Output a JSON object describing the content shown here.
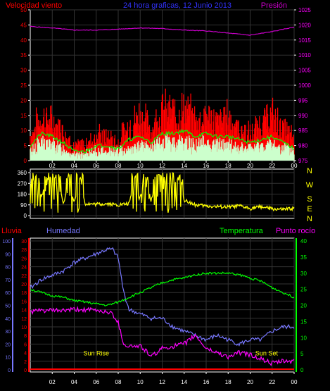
{
  "header": {
    "left_label": "Velocidad viento",
    "center_label": "24 hora graficas, 12 Junio 2013",
    "right_label": "Presión"
  },
  "colors": {
    "wind_gust": "#ff0000",
    "wind_avg_line": "#00ff00",
    "wind_speed": "#ccffcc",
    "pressure": "#cc00cc",
    "direction": "#ffff00",
    "rain": "#ff0000",
    "humidity": "#7777ff",
    "temperature": "#00ff00",
    "dew_point": "#ff00ff",
    "frame": "#ffffff",
    "left_axis": "#ff0000",
    "right_axis": "#ff00ff",
    "sun_labels": "#ffff00"
  },
  "bottom_panel": {
    "labels": {
      "rain": "Lluvia",
      "humidity": "Humedad",
      "temperature": "Temperatura",
      "dew_point": "Punto rocío"
    },
    "annotations": {
      "sunrise": "Sun Rise",
      "sunset": "Sun Set"
    }
  },
  "chart_data": [
    {
      "type": "line",
      "x_ticks": [
        "02",
        "04",
        "06",
        "08",
        "10",
        "12",
        "14",
        "16",
        "18",
        "20",
        "22",
        "00"
      ],
      "x_ticks_positions": [
        2,
        4,
        6,
        8,
        10,
        12,
        14,
        16,
        18,
        20,
        22,
        24
      ],
      "xlim": [
        0,
        24
      ],
      "left_axis": {
        "ticks": [
          0,
          5,
          10,
          15,
          20,
          25,
          30,
          35,
          40,
          45,
          50
        ],
        "ylim": [
          0,
          50
        ]
      },
      "right_axis": {
        "ticks": [
          975,
          980,
          985,
          990,
          995,
          1000,
          1005,
          1010,
          1015,
          1020,
          1025
        ],
        "ylim": [
          975,
          1025
        ]
      },
      "series": [
        {
          "key": "pressure",
          "axis": "right",
          "x": [
            0,
            2,
            4,
            6,
            8,
            10,
            12,
            14,
            16,
            18,
            20,
            22,
            24
          ],
          "values": [
            1019.5,
            1019.0,
            1018.3,
            1018.3,
            1018.6,
            1019.0,
            1018.8,
            1018.3,
            1018.0,
            1017.3,
            1016.6,
            1017.8,
            1019.3
          ]
        },
        {
          "key": "wind_gust",
          "axis": "left",
          "x": [
            0,
            1,
            2,
            3,
            4,
            5,
            6,
            7,
            8,
            9,
            10,
            11,
            12,
            13,
            14,
            15,
            16,
            17,
            18,
            19,
            20,
            21,
            22,
            23,
            24
          ],
          "values": [
            8,
            14,
            12,
            10,
            4,
            5,
            8,
            7,
            6,
            11,
            15,
            10,
            16,
            15,
            16,
            13,
            14,
            12,
            14,
            10,
            8,
            12,
            14,
            10,
            7
          ]
        },
        {
          "key": "wind_avg_line",
          "axis": "left",
          "x": [
            0,
            1,
            2,
            3,
            4,
            5,
            6,
            7,
            8,
            9,
            10,
            11,
            12,
            13,
            14,
            15,
            16,
            17,
            18,
            19,
            20,
            21,
            22,
            23,
            24
          ],
          "values": [
            5,
            9,
            8,
            6,
            3,
            3,
            5,
            5,
            4,
            7,
            8,
            6,
            9,
            9,
            10,
            8,
            9,
            8,
            8,
            7,
            6,
            7,
            8,
            6,
            4
          ]
        },
        {
          "key": "wind_speed",
          "axis": "left",
          "x": [
            0,
            1,
            2,
            3,
            4,
            5,
            6,
            7,
            8,
            9,
            10,
            11,
            12,
            13,
            14,
            15,
            16,
            17,
            18,
            19,
            20,
            21,
            22,
            23,
            24
          ],
          "values": [
            3,
            6,
            5,
            4,
            2,
            2,
            3,
            3,
            3,
            4,
            5,
            4,
            6,
            6,
            6,
            5,
            6,
            5,
            5,
            4,
            4,
            5,
            5,
            4,
            3
          ]
        }
      ]
    },
    {
      "type": "line",
      "x_ticks_positions": [
        2,
        4,
        6,
        8,
        10,
        12,
        14,
        16,
        18,
        20,
        22,
        24
      ],
      "xlim": [
        0,
        24
      ],
      "left_axis": {
        "ticks": [
          0,
          90,
          180,
          270,
          360
        ],
        "ylim": [
          0,
          360
        ]
      },
      "right_axis": {
        "ticks": [
          "N",
          "W",
          "S",
          "E",
          "N"
        ]
      },
      "series": [
        {
          "key": "direction",
          "x": [
            0,
            0.5,
            1,
            1.5,
            2,
            2.5,
            3,
            3.5,
            4,
            4.5,
            5,
            6,
            7,
            8,
            9,
            9.5,
            10,
            10.5,
            11,
            11.5,
            12,
            12.5,
            13,
            13.5,
            14,
            15,
            16,
            17,
            18,
            19,
            20,
            21,
            22,
            23,
            24
          ],
          "values": [
            280,
            320,
            150,
            300,
            200,
            310,
            90,
            260,
            120,
            300,
            100,
            95,
            100,
            90,
            100,
            300,
            150,
            320,
            120,
            300,
            180,
            320,
            200,
            310,
            130,
            90,
            80,
            75,
            70,
            80,
            60,
            75,
            55,
            50,
            60
          ]
        }
      ]
    },
    {
      "type": "line",
      "x_ticks": [
        "02",
        "04",
        "06",
        "08",
        "10",
        "12",
        "14",
        "16",
        "18",
        "20",
        "22",
        "00"
      ],
      "x_ticks_positions": [
        2,
        4,
        6,
        8,
        10,
        12,
        14,
        16,
        18,
        20,
        22,
        24
      ],
      "xlim": [
        0,
        24
      ],
      "rain_axis": {
        "ticks": [
          0,
          10,
          20,
          30,
          40,
          50,
          60,
          70,
          80,
          90,
          100
        ],
        "ylim": [
          0,
          100
        ]
      },
      "humidity_axis": {
        "ticks": [
          0,
          2,
          4,
          6,
          8,
          10,
          12,
          14,
          16,
          18,
          20,
          22,
          24,
          26,
          28,
          30
        ],
        "ylim": [
          0,
          30
        ]
      },
      "temperature_axis": {
        "ticks": [
          0,
          5,
          10,
          15,
          20,
          25,
          30,
          35,
          40
        ],
        "ylim": [
          0,
          40
        ]
      },
      "events": {
        "sunrise_x": 6.0,
        "sunset_x": 21.5
      },
      "series": [
        {
          "key": "humidity",
          "axis": "humidity",
          "x": [
            0,
            1,
            2,
            3,
            4,
            5,
            6,
            7,
            7.5,
            8,
            8.5,
            9,
            10,
            11,
            12,
            13,
            14,
            15,
            16,
            17,
            18,
            19,
            20,
            21,
            22,
            23,
            24
          ],
          "values": [
            19,
            21,
            22,
            23,
            25,
            26,
            27,
            28,
            28,
            26,
            18,
            14,
            13,
            12,
            12,
            10,
            9,
            8,
            7,
            8,
            7,
            6,
            7,
            7,
            9,
            10,
            10
          ]
        },
        {
          "key": "temperature",
          "axis": "temperature",
          "x": [
            0,
            1,
            2,
            3,
            4,
            5,
            6,
            7,
            7.5,
            8,
            9,
            10,
            11,
            12,
            13,
            14,
            15,
            16,
            17,
            18,
            19,
            20,
            21,
            22,
            23,
            24
          ],
          "values": [
            25,
            24,
            23,
            22.5,
            21.5,
            21,
            20.5,
            20,
            20.5,
            21,
            22.5,
            24,
            25.5,
            27,
            28,
            28.5,
            29.5,
            30,
            30,
            30,
            29.5,
            28.5,
            27.5,
            25.5,
            24,
            22.5
          ]
        },
        {
          "key": "dew_point",
          "axis": "humidity",
          "x": [
            0,
            1,
            2,
            3,
            4,
            5,
            6,
            7,
            7.5,
            8,
            8.5,
            9,
            10,
            10.5,
            11,
            12,
            13,
            14,
            15,
            16,
            17,
            18,
            19,
            20,
            21,
            22,
            23,
            24
          ],
          "values": [
            13.5,
            13.8,
            13.8,
            13.8,
            14,
            14,
            13.8,
            13.5,
            13,
            11,
            6,
            5.5,
            5.5,
            4.5,
            3,
            5,
            5.5,
            6,
            8,
            5,
            4,
            3,
            4,
            3.5,
            2.5,
            1.5,
            2,
            2
          ]
        },
        {
          "key": "rain",
          "axis": "rain",
          "x": [
            0,
            24
          ],
          "values": [
            0,
            0
          ]
        }
      ]
    }
  ]
}
